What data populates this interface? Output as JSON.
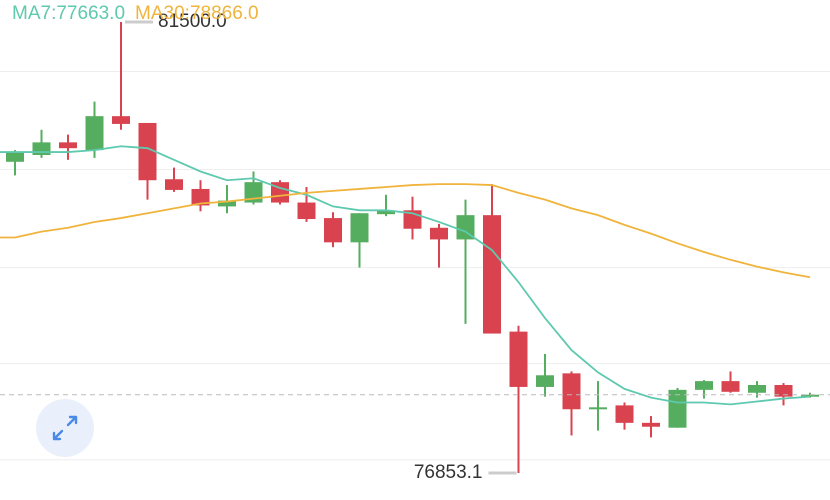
{
  "chart_data": {
    "type": "candlestick",
    "up_color": "#55ad5f",
    "down_color": "#d9434f",
    "grid": true,
    "ylim": [
      76575,
      81727
    ],
    "yticks": [
      76990,
      77980,
      78970,
      79980,
      80990
    ],
    "open": [
      80060,
      80130,
      80260,
      80180,
      80530,
      80460,
      79880,
      79780,
      79600,
      79640,
      79850,
      79640,
      79480,
      79230,
      79520,
      79560,
      79380,
      79260,
      79510,
      78310,
      77740,
      77880,
      77510,
      77550,
      77370,
      77320,
      77710,
      77800,
      77680,
      77760,
      77640
    ],
    "high": [
      80180,
      80390,
      80340,
      80680,
      81500,
      80460,
      80000,
      79870,
      79820,
      79960,
      79870,
      79800,
      79540,
      79530,
      79720,
      79700,
      79420,
      79670,
      79830,
      78370,
      78080,
      77900,
      77800,
      77580,
      77440,
      77730,
      77810,
      77900,
      77800,
      77780,
      77680
    ],
    "low": [
      79920,
      80100,
      80080,
      80100,
      80390,
      79670,
      79750,
      79550,
      79530,
      79620,
      79620,
      79440,
      79180,
      78970,
      79500,
      79260,
      78970,
      78390,
      78290,
      76853.1,
      77640,
      77240,
      77290,
      77300,
      77220,
      77320,
      77620,
      77680,
      77630,
      77550,
      77630
    ],
    "close": [
      80160,
      80260,
      80200,
      80530,
      80450,
      79870,
      79770,
      79610,
      79660,
      79850,
      79640,
      79470,
      79230,
      79530,
      79560,
      79370,
      79260,
      79510,
      78290,
      77740,
      77860,
      77510,
      77530,
      77370,
      77330,
      77710,
      77800,
      77690,
      77760,
      77640,
      77660
    ],
    "series": [
      {
        "name": "MA7:77663.0",
        "color": "#5ec9ae",
        "values": [
          80160,
          80160,
          80160,
          80180,
          80220,
          80200,
          80080,
          79960,
          79870,
          79890,
          79790,
          79720,
          79600,
          79560,
          79560,
          79530,
          79440,
          79340,
          79150,
          78820,
          78450,
          78120,
          77890,
          77720,
          77630,
          77580,
          77580,
          77560,
          77590,
          77620,
          77640
        ]
      },
      {
        "name": "MA30:78866.0",
        "color": "#f0b43c",
        "values": [
          79280,
          79340,
          79380,
          79440,
          79480,
          79530,
          79580,
          79630,
          79650,
          79680,
          79710,
          79740,
          79760,
          79780,
          79800,
          79820,
          79830,
          79830,
          79820,
          79740,
          79670,
          79580,
          79510,
          79410,
          79320,
          79220,
          79130,
          79050,
          78980,
          78920,
          78870
        ]
      }
    ],
    "high_label": {
      "value": 81500,
      "label": "81500.0"
    },
    "low_label": {
      "value": 76853.1,
      "label": "76853.1"
    }
  }
}
